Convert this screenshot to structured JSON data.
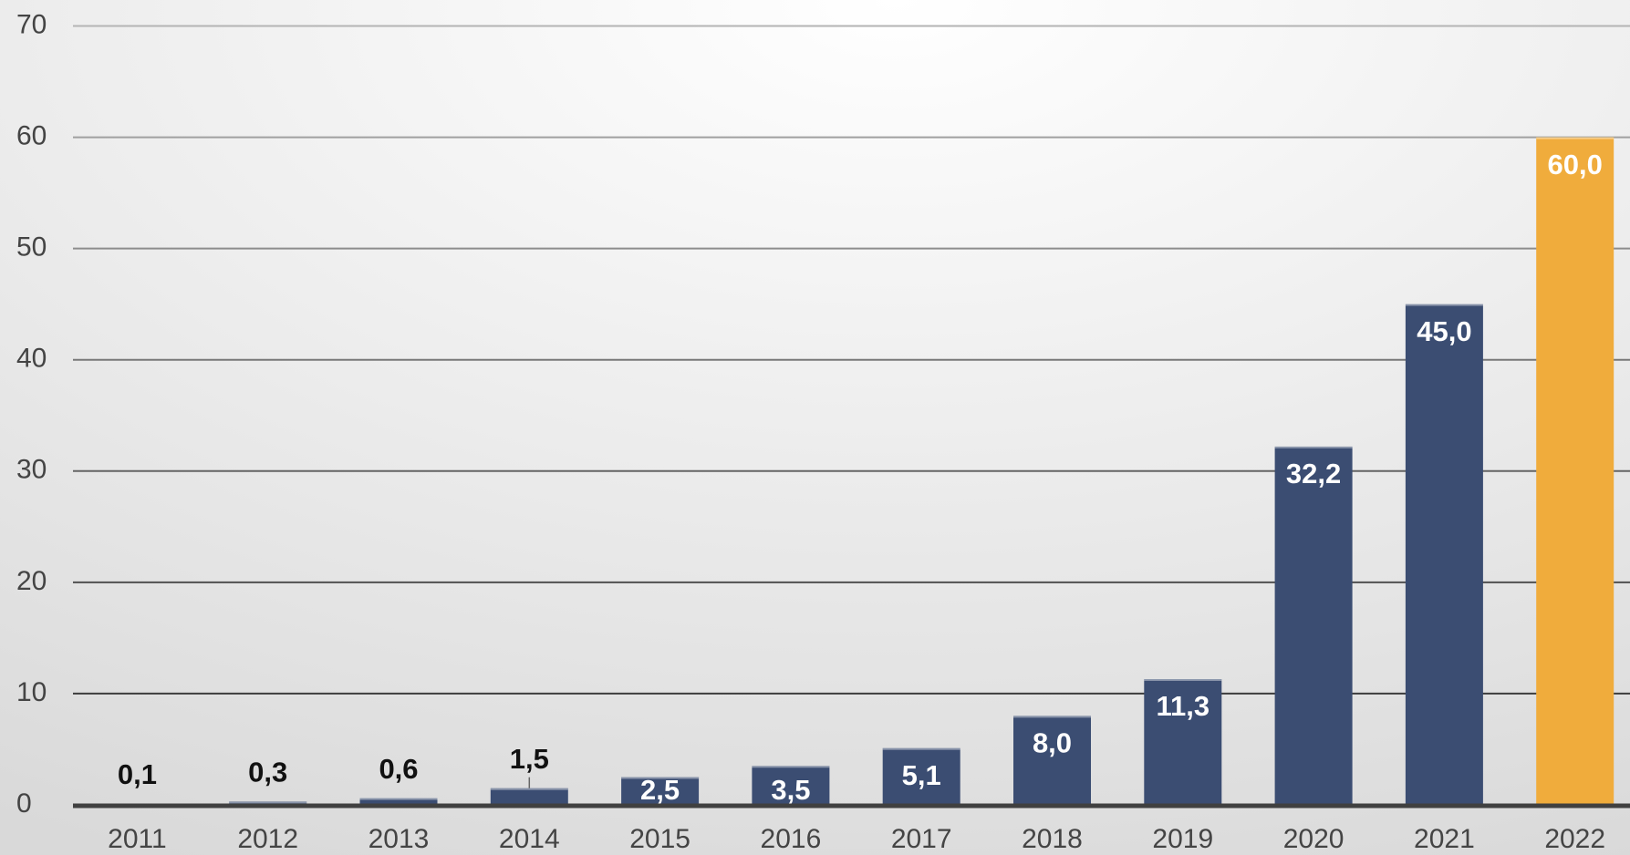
{
  "chart_data": {
    "type": "bar",
    "categories": [
      "2011",
      "2012",
      "2013",
      "2014",
      "2015",
      "2016",
      "2017",
      "2018",
      "2019",
      "2020",
      "2021",
      "2022"
    ],
    "values": [
      0.1,
      0.3,
      0.6,
      1.5,
      2.5,
      3.5,
      5.1,
      8.0,
      11.3,
      32.2,
      45.0,
      60.0
    ],
    "value_labels": [
      "0,1",
      "0,3",
      "0,6",
      "1,5",
      "2,5",
      "3,5",
      "5,1",
      "8,0",
      "11,3",
      "32,2",
      "45,0",
      "60,0"
    ],
    "colors": [
      "#3b4d72",
      "#3b4d72",
      "#3b4d72",
      "#3b4d72",
      "#3b4d72",
      "#3b4d72",
      "#3b4d72",
      "#3b4d72",
      "#3b4d72",
      "#3b4d72",
      "#3b4d72",
      "#f0ac3c"
    ],
    "ylim": [
      0,
      70
    ],
    "yticks": [
      0,
      10,
      20,
      30,
      40,
      50,
      60,
      70
    ],
    "grid": true
  }
}
